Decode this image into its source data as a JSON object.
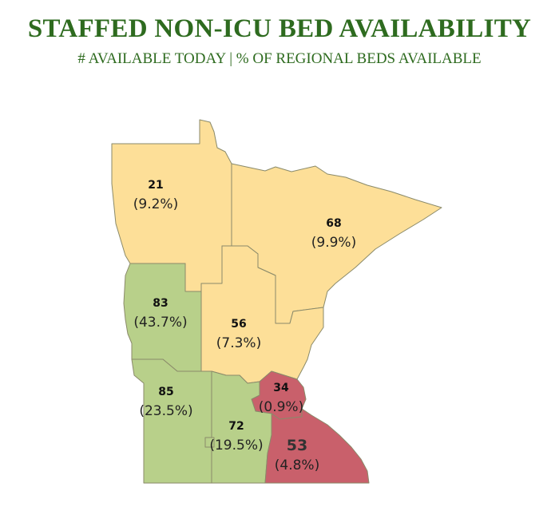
{
  "header": {
    "title": "STAFFED NON-ICU BED AVAILABILITY",
    "subtitle": "# AVAILABLE TODAY | % OF REGIONAL BEDS AVAILABLE"
  },
  "colors": {
    "low_availability": "#c9606b",
    "medium_availability": "#fddf98",
    "high_availability": "#b8d08a"
  },
  "regions": [
    {
      "id": "northwest",
      "count": "21",
      "percent": "(9.2%)",
      "category": "medium_availability"
    },
    {
      "id": "northeast",
      "count": "68",
      "percent": "(9.9%)",
      "category": "medium_availability"
    },
    {
      "id": "west-central",
      "count": "83",
      "percent": "(43.7%)",
      "category": "high_availability"
    },
    {
      "id": "central",
      "count": "56",
      "percent": "(7.3%)",
      "category": "medium_availability"
    },
    {
      "id": "metro",
      "count": "34",
      "percent": "(0.9%)",
      "category": "low_availability"
    },
    {
      "id": "southwest",
      "count": "85",
      "percent": "(23.5%)",
      "category": "high_availability"
    },
    {
      "id": "south-central",
      "count": "72",
      "percent": "(19.5%)",
      "category": "high_availability"
    },
    {
      "id": "southeast",
      "count": "53",
      "percent": "(4.8%)",
      "category": "low_availability"
    }
  ]
}
